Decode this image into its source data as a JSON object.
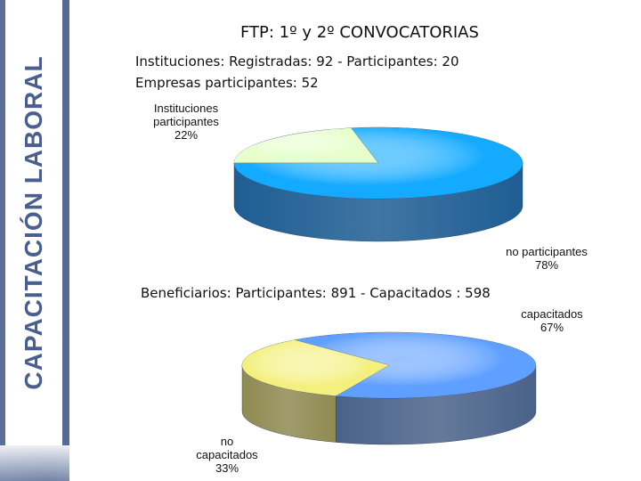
{
  "sidebar": {
    "title": "CAPACITACIÓN LABORAL",
    "color": "#4a5f8d"
  },
  "header": {
    "title": "FTP:  1º y 2º  CONVOCATORIAS",
    "instituciones_line": "Instituciones:   Registradas:  92  -  Participantes: 20",
    "empresas_line": "Empresas participantes: 52",
    "beneficiarios_line": "Beneficiarios: Participantes:  891 -  Capacitados : 598"
  },
  "chart_data": [
    {
      "type": "pie",
      "slices": [
        {
          "label": "Instituciones participantes",
          "value": 22,
          "value_label": "22%",
          "color": "#e6ffcc",
          "side": "#a8c890"
        },
        {
          "label": "no participantes",
          "value": 78,
          "value_label": "78%",
          "color": "#14aaff",
          "side": "#1e5d93"
        }
      ]
    },
    {
      "type": "pie",
      "slices": [
        {
          "label": "capacitados",
          "value": 67,
          "value_label": "67%",
          "color": "#5f9fff",
          "side": "#4a6289"
        },
        {
          "label": "no capacitados",
          "value": 33,
          "value_label": "33%",
          "color": "#f4f080",
          "side": "#8f8a52"
        }
      ]
    }
  ],
  "labels": {
    "pie1_small": [
      "Instituciones",
      "participantes",
      "22%"
    ],
    "pie1_large": [
      "no participantes",
      "78%"
    ],
    "pie2_large": [
      "capacitados",
      "67%"
    ],
    "pie2_small": [
      "no",
      "capacitados",
      "33%"
    ]
  }
}
